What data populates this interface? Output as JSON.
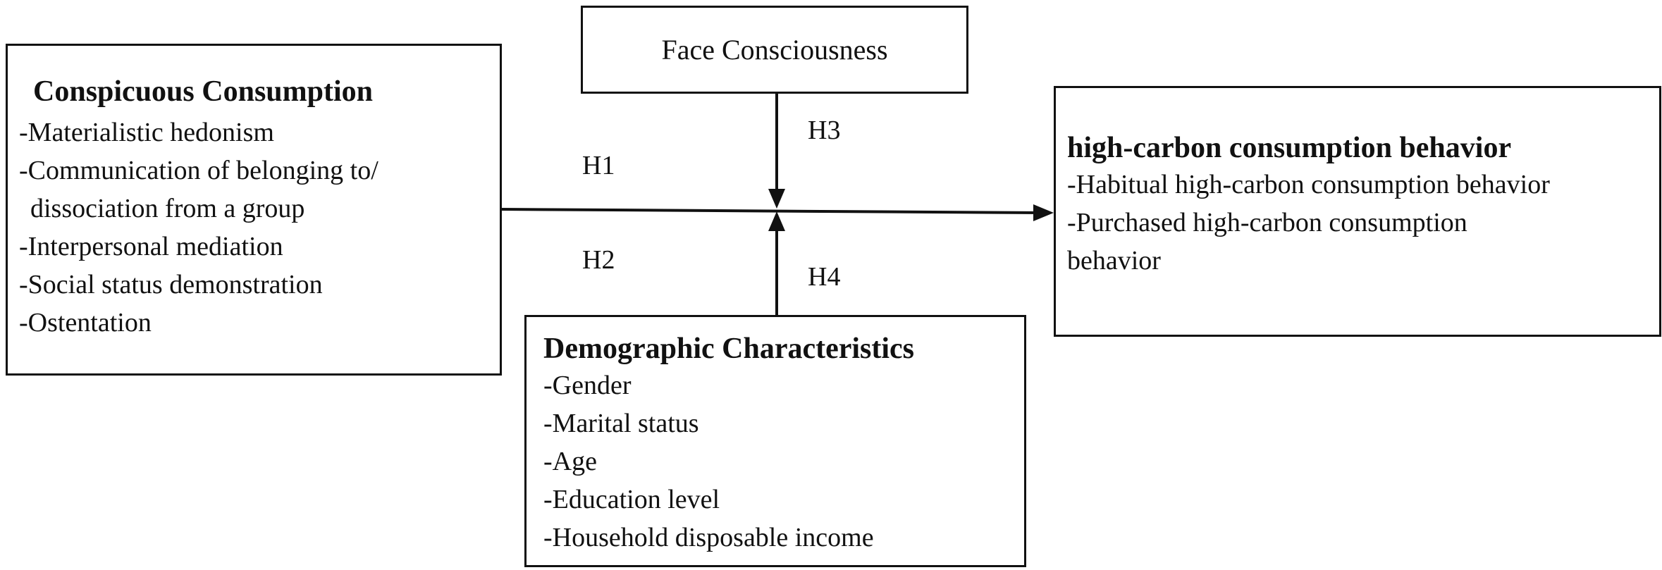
{
  "conspicuous_consumption": {
    "title": "Conspicuous Consumption",
    "items": [
      "-Materialistic hedonism",
      "-Communication of belonging to/",
      "dissociation from a group",
      "-Interpersonal mediation",
      "-Social status demonstration",
      "-Ostentation"
    ]
  },
  "face_consciousness": {
    "title": "Face Consciousness"
  },
  "high_carbon": {
    "title": "high-carbon consumption behavior",
    "items": [
      "-Habitual high-carbon consumption behavior",
      "-Purchased high-carbon consumption",
      "behavior"
    ]
  },
  "demographic": {
    "title": "Demographic Characteristics",
    "items": [
      "-Gender",
      "-Marital status",
      "-Age",
      "-Education level",
      "-Household disposable income"
    ]
  },
  "hypotheses": {
    "h1": "H1",
    "h2": "H2",
    "h3": "H3",
    "h4": "H4"
  }
}
